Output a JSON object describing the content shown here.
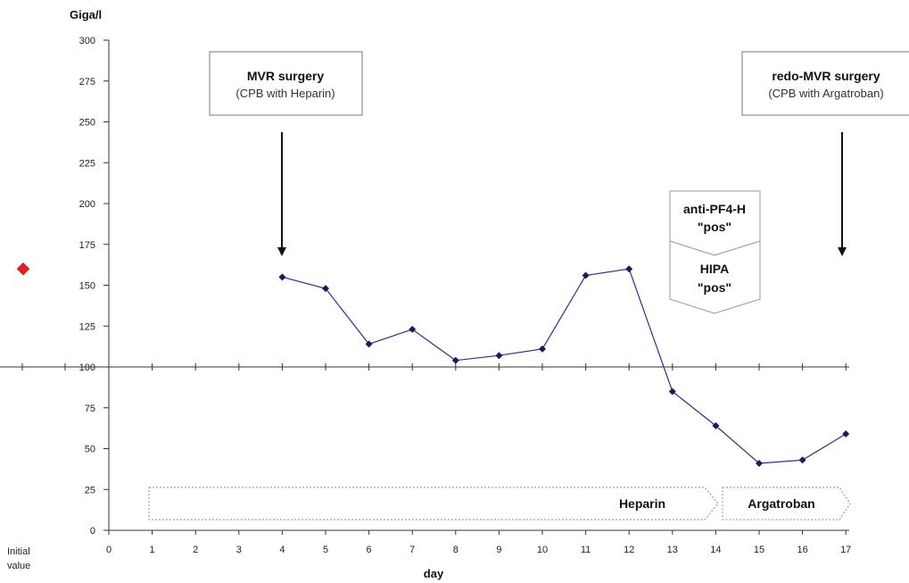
{
  "chart_data": {
    "type": "line",
    "y_unit_label": "Giga/l",
    "xlabel": "day",
    "ylim": [
      0,
      300
    ],
    "y_ticks": [
      0,
      25,
      50,
      75,
      100,
      125,
      150,
      175,
      200,
      225,
      250,
      275,
      300
    ],
    "x_ticks": [
      "0",
      "1",
      "2",
      "3",
      "4",
      "5",
      "6",
      "7",
      "8",
      "9",
      "10",
      "11",
      "12",
      "13",
      "14",
      "15",
      "16",
      "17"
    ],
    "initial_value_label": "Initial value",
    "initial_value": 160,
    "series": [
      {
        "x": [
          4,
          5,
          6,
          7,
          8,
          9,
          10,
          11,
          12,
          13,
          14,
          15,
          16,
          17
        ],
        "values": [
          155,
          148,
          114,
          123,
          104,
          107,
          111,
          156,
          160,
          85,
          64,
          41,
          43,
          59
        ]
      }
    ],
    "reference_line": 100,
    "annotations": {
      "mvr": {
        "title": "MVR surgery",
        "subtitle": "(CPB with Heparin)",
        "day": 4
      },
      "redo": {
        "title": "redo-MVR surgery",
        "subtitle": "(CPB with Argatroban)",
        "day": 17
      },
      "antipf4": {
        "line1": "anti-PF4-H",
        "line2": "\"pos\""
      },
      "hipa": {
        "line1": "HIPA",
        "line2": "\"pos\""
      }
    },
    "treatments": {
      "heparin": "Heparin",
      "argatroban": "Argatroban"
    }
  },
  "colors": {
    "line": "#2b2f8f",
    "marker": "#1a1a5e",
    "initial_marker": "#e02020",
    "axis": "#333333"
  }
}
